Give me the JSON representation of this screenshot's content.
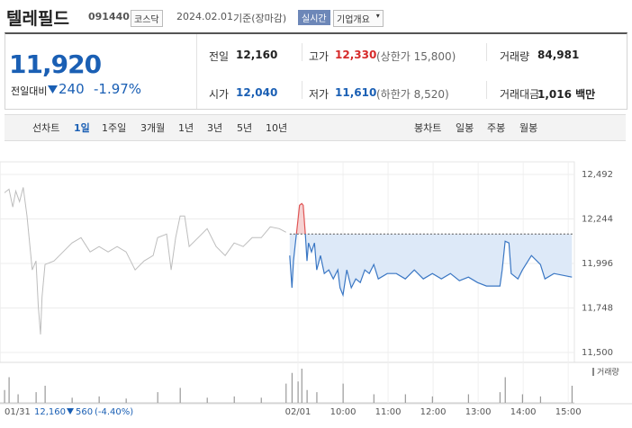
{
  "header": {
    "name": "텔레필드",
    "code": "091440",
    "market": "코스닥",
    "date": "2024.02.01",
    "basis": "기준(장마감)",
    "realtime": "실시간",
    "company": "기업개요"
  },
  "quote": {
    "price": "11,920",
    "change_label": "전일대비",
    "change": "240",
    "change_pct": "-1.97%"
  },
  "stats": [
    [
      {
        "label": "전일",
        "value": "12,160"
      },
      {
        "label": "고가",
        "value": "12,330",
        "extra": "(상한가 15,800)"
      },
      {
        "label": "거래량",
        "value": "84,981"
      }
    ],
    [
      {
        "label": "시가",
        "value": "12,040"
      },
      {
        "label": "저가",
        "value": "11,610",
        "extra": "(하한가 8,520)"
      },
      {
        "label": "거래대금",
        "value": "1,016 백만"
      }
    ]
  ],
  "toolbar": {
    "line_label": "선차트",
    "line_periods": [
      "1일",
      "1주일",
      "3개월",
      "1년",
      "3년",
      "5년",
      "10년"
    ],
    "candle_label": "봉차트",
    "candle_periods": [
      "일봉",
      "주봉",
      "월봉"
    ]
  },
  "footer": {
    "date": "01/31",
    "prev": "12,160",
    "change": "560",
    "pct": "(-4.40%)"
  },
  "chart_data": {
    "type": "line",
    "ylim": [
      11500,
      12492
    ],
    "yticks": [
      {
        "value": 12492,
        "label": "12,492"
      },
      {
        "value": 12244,
        "label": "12,244"
      },
      {
        "value": 11996,
        "label": "11,996"
      },
      {
        "value": 11748,
        "label": "11,748"
      },
      {
        "value": 11500,
        "label": "11,500"
      }
    ],
    "xlim": [
      -391,
      367
    ],
    "xticks": [
      {
        "value": 0,
        "label": "02/01"
      },
      {
        "value": 60,
        "label": "10:00"
      },
      {
        "value": 120,
        "label": "11:00"
      },
      {
        "value": 180,
        "label": "12:00"
      },
      {
        "value": 240,
        "label": "13:00"
      },
      {
        "value": 300,
        "label": "14:00"
      },
      {
        "value": 360,
        "label": "15:00"
      }
    ],
    "reference": 12160,
    "grid": true,
    "series": [
      {
        "color": "#bdbdbd",
        "x": [
          -391,
          -385,
          -380,
          -376,
          -371,
          -366,
          -361,
          -354,
          -349,
          -346,
          -343,
          -341,
          -337,
          -325,
          -313,
          -301,
          -289,
          -277,
          -265,
          -253,
          -241,
          -229,
          -217,
          -205,
          -193,
          -187,
          -175,
          -169,
          -163,
          -157,
          -151,
          -145,
          -133,
          -121,
          -109,
          -97,
          -85,
          -73,
          -61,
          -49,
          -37,
          -25,
          -16
        ],
        "values": [
          12390,
          12410,
          12310,
          12400,
          12340,
          12420,
          12260,
          11960,
          12010,
          11760,
          11600,
          11810,
          11990,
          12010,
          12060,
          12110,
          12140,
          12060,
          12090,
          12060,
          12090,
          12060,
          11960,
          12010,
          12040,
          12140,
          12160,
          11960,
          12140,
          12260,
          12260,
          12090,
          12140,
          12190,
          12090,
          12040,
          12110,
          12090,
          12140,
          12140,
          12200,
          12190,
          12170
        ]
      },
      {
        "color": "#3a77c4",
        "up_color": "#e05555",
        "x": [
          -11,
          -8,
          -6,
          -4,
          0,
          2,
          5,
          7,
          10,
          12,
          14,
          18,
          22,
          25,
          30,
          35,
          41,
          47,
          53,
          56,
          60,
          65,
          71,
          77,
          83,
          89,
          95,
          101,
          107,
          119,
          131,
          143,
          155,
          167,
          179,
          191,
          203,
          215,
          227,
          239,
          251,
          269,
          272,
          276,
          281,
          284,
          293,
          299,
          311,
          323,
          329,
          341,
          365
        ],
        "values": [
          12040,
          11860,
          12010,
          12090,
          12240,
          12320,
          12330,
          12320,
          12150,
          12010,
          12110,
          12060,
          12110,
          11960,
          12040,
          11940,
          11960,
          11910,
          11960,
          11860,
          11820,
          11960,
          11860,
          11910,
          11890,
          11960,
          11940,
          11990,
          11910,
          11940,
          11940,
          11910,
          11960,
          11910,
          11940,
          11910,
          11940,
          11900,
          11920,
          11890,
          11870,
          11870,
          11960,
          12120,
          12110,
          11940,
          11910,
          11960,
          12040,
          11990,
          11910,
          11940,
          11920
        ]
      }
    ],
    "volume": {
      "name": "거래량",
      "x": [
        -391,
        -385,
        -373,
        -349,
        -337,
        -301,
        -265,
        -229,
        -187,
        -157,
        -121,
        -85,
        -49,
        -16,
        -8,
        0,
        5,
        12,
        25,
        60,
        101,
        143,
        179,
        227,
        269,
        276,
        299,
        323,
        365
      ],
      "values": [
        3000,
        6000,
        2000,
        2500,
        4000,
        1200,
        1500,
        1000,
        2500,
        3500,
        1200,
        1500,
        1200,
        4500,
        7000,
        5000,
        8000,
        3000,
        2500,
        4500,
        2000,
        2000,
        1500,
        2000,
        2500,
        6000,
        2000,
        1500,
        4000
      ]
    }
  }
}
